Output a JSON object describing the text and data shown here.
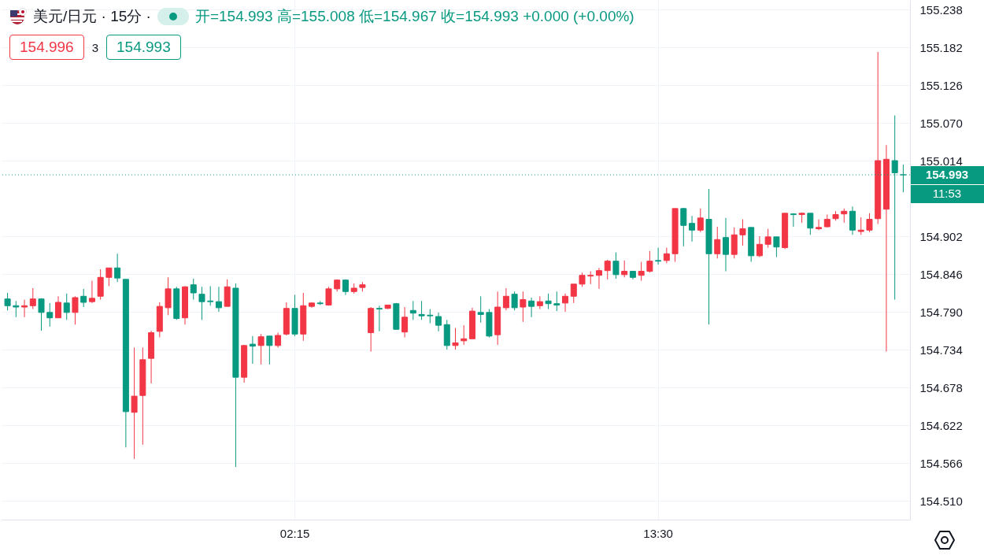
{
  "chart_data": {
    "type": "candlestick",
    "title": "美元/日元 · 15分 ·",
    "subtitle": "开=154.993  高=155.008  低=154.967  收=154.993  +0.000 (+0.00%)",
    "annotations": [
      "154.996",
      "3",
      "154.993",
      "11:53"
    ],
    "categories": [
      null,
      null,
      null,
      null,
      null,
      null,
      null,
      null,
      null,
      null,
      null,
      null,
      null,
      null,
      null,
      null,
      null,
      null,
      null,
      null,
      null,
      null,
      null,
      null,
      null,
      null,
      null,
      null,
      null,
      null,
      null,
      null,
      null,
      null,
      "02:15",
      null,
      null,
      null,
      null,
      null,
      null,
      null,
      null,
      null,
      null,
      null,
      null,
      null,
      null,
      null,
      null,
      null,
      null,
      null,
      null,
      null,
      null,
      null,
      null,
      null,
      null,
      null,
      null,
      null,
      null,
      null,
      null,
      null,
      null,
      null,
      null,
      null,
      null,
      null,
      null,
      null,
      null,
      "13:30",
      null,
      null,
      null,
      null,
      null,
      null,
      null,
      null,
      null,
      null,
      null,
      null,
      null,
      null,
      null,
      null,
      null,
      null,
      null,
      null,
      null,
      null,
      null,
      null,
      null,
      null,
      null,
      null,
      null
    ],
    "ohlc": [
      [
        154.809,
        154.818,
        154.792,
        154.799
      ],
      [
        154.799,
        154.806,
        154.782,
        154.797
      ],
      [
        154.797,
        154.808,
        154.782,
        154.799
      ],
      [
        154.799,
        154.825,
        154.794,
        154.809
      ],
      [
        154.809,
        154.81,
        154.762,
        154.789
      ],
      [
        154.789,
        154.803,
        154.768,
        154.781
      ],
      [
        154.781,
        154.813,
        154.781,
        154.804
      ],
      [
        154.803,
        154.817,
        154.778,
        154.789
      ],
      [
        154.789,
        154.813,
        154.771,
        154.811
      ],
      [
        154.813,
        154.824,
        154.797,
        154.804
      ],
      [
        154.805,
        154.836,
        154.803,
        154.81
      ],
      [
        154.813,
        154.853,
        154.808,
        154.841
      ],
      [
        154.841,
        154.855,
        154.828,
        154.855
      ],
      [
        154.855,
        154.876,
        154.834,
        154.84
      ],
      [
        154.838,
        154.838,
        154.589,
        154.642
      ],
      [
        154.641,
        154.737,
        154.572,
        154.665
      ],
      [
        154.666,
        154.737,
        154.593,
        154.719
      ],
      [
        154.721,
        154.762,
        154.684,
        154.759
      ],
      [
        154.761,
        154.804,
        154.752,
        154.798
      ],
      [
        154.796,
        154.841,
        154.785,
        154.824
      ],
      [
        154.824,
        154.827,
        154.778,
        154.78
      ],
      [
        154.781,
        154.828,
        154.771,
        154.827
      ],
      [
        154.83,
        154.839,
        154.808,
        154.818
      ],
      [
        154.816,
        154.827,
        154.778,
        154.805
      ],
      [
        154.806,
        154.828,
        154.799,
        154.805
      ],
      [
        154.805,
        154.827,
        154.79,
        154.796
      ],
      [
        154.798,
        154.838,
        154.798,
        154.827
      ],
      [
        154.825,
        154.832,
        154.56,
        154.693
      ],
      [
        154.693,
        154.741,
        154.685,
        154.74
      ],
      [
        154.742,
        154.754,
        154.713,
        154.739
      ],
      [
        154.74,
        154.757,
        154.712,
        154.753
      ],
      [
        154.754,
        154.754,
        154.712,
        154.74
      ],
      [
        154.74,
        154.759,
        154.737,
        154.755
      ],
      [
        154.757,
        154.804,
        154.755,
        154.795
      ],
      [
        154.795,
        154.815,
        154.754,
        154.757
      ],
      [
        154.757,
        154.818,
        154.747,
        154.799
      ],
      [
        154.798,
        154.804,
        154.796,
        154.803
      ],
      [
        154.803,
        154.806,
        154.8,
        154.802
      ],
      [
        154.8,
        154.827,
        154.799,
        154.824
      ],
      [
        154.824,
        154.838,
        154.82,
        154.837
      ],
      [
        154.837,
        154.838,
        154.815,
        154.82
      ],
      [
        154.82,
        154.832,
        154.817,
        154.825
      ],
      [
        154.826,
        154.834,
        154.82,
        154.83
      ],
      [
        154.759,
        154.797,
        154.731,
        154.795
      ],
      [
        154.795,
        154.799,
        154.761,
        154.794
      ],
      [
        154.795,
        154.8,
        154.794,
        154.8
      ],
      [
        154.802,
        154.803,
        154.764,
        154.764
      ],
      [
        154.76,
        154.797,
        154.752,
        154.782
      ],
      [
        154.792,
        154.806,
        154.778,
        154.788
      ],
      [
        154.786,
        154.806,
        154.778,
        154.784
      ],
      [
        154.785,
        154.794,
        154.773,
        154.784
      ],
      [
        154.783,
        154.789,
        154.761,
        154.77
      ],
      [
        154.771,
        154.778,
        154.734,
        154.74
      ],
      [
        154.74,
        154.766,
        154.734,
        154.744
      ],
      [
        154.747,
        154.77,
        154.741,
        154.75
      ],
      [
        154.75,
        154.796,
        154.75,
        154.791
      ],
      [
        154.789,
        154.813,
        154.774,
        154.786
      ],
      [
        154.789,
        154.794,
        154.752,
        154.754
      ],
      [
        154.756,
        154.82,
        154.741,
        154.797
      ],
      [
        154.796,
        154.825,
        154.792,
        154.813
      ],
      [
        154.816,
        154.82,
        154.792,
        154.796
      ],
      [
        154.797,
        154.82,
        154.775,
        154.808
      ],
      [
        154.806,
        154.811,
        154.782,
        154.798
      ],
      [
        154.799,
        154.813,
        154.794,
        154.805
      ],
      [
        154.806,
        154.817,
        154.794,
        154.802
      ],
      [
        154.802,
        154.82,
        154.791,
        154.8
      ],
      [
        154.803,
        154.817,
        154.79,
        154.813
      ],
      [
        154.813,
        154.831,
        154.803,
        154.831
      ],
      [
        154.831,
        154.848,
        154.827,
        154.844
      ],
      [
        154.843,
        154.85,
        154.831,
        154.844
      ],
      [
        154.844,
        154.855,
        154.824,
        154.851
      ],
      [
        154.851,
        154.867,
        154.838,
        154.865
      ],
      [
        154.865,
        154.878,
        154.839,
        154.845
      ],
      [
        154.845,
        154.866,
        154.841,
        154.85
      ],
      [
        154.85,
        154.85,
        154.838,
        154.841
      ],
      [
        154.844,
        154.864,
        154.836,
        154.85
      ],
      [
        154.85,
        154.88,
        154.848,
        154.865
      ],
      [
        154.866,
        154.885,
        154.86,
        154.865
      ],
      [
        154.866,
        154.885,
        154.862,
        154.876
      ],
      [
        154.876,
        154.943,
        154.864,
        154.943
      ],
      [
        154.943,
        154.944,
        154.887,
        154.918
      ],
      [
        154.921,
        154.932,
        154.894,
        154.911
      ],
      [
        154.911,
        154.943,
        154.908,
        154.929
      ],
      [
        154.927,
        154.972,
        154.771,
        154.876
      ],
      [
        154.876,
        154.916,
        154.869,
        154.897
      ],
      [
        154.9,
        154.929,
        154.85,
        154.875
      ],
      [
        154.875,
        154.915,
        154.869,
        154.904
      ],
      [
        154.904,
        154.927,
        154.888,
        154.913
      ],
      [
        154.915,
        154.915,
        154.864,
        154.873
      ],
      [
        154.873,
        154.902,
        154.871,
        154.89
      ],
      [
        154.89,
        154.913,
        154.885,
        154.901
      ],
      [
        154.901,
        154.901,
        154.871,
        154.886
      ],
      [
        154.885,
        154.936,
        154.883,
        154.936
      ],
      [
        154.935,
        154.936,
        154.916,
        154.934
      ],
      [
        154.934,
        154.937,
        154.922,
        154.936
      ],
      [
        154.936,
        154.936,
        154.904,
        154.914
      ],
      [
        154.913,
        154.927,
        154.911,
        154.915
      ],
      [
        154.916,
        154.934,
        154.915,
        154.927
      ],
      [
        154.928,
        154.939,
        154.925,
        154.934
      ],
      [
        154.935,
        154.943,
        154.922,
        154.939
      ],
      [
        154.939,
        154.946,
        154.904,
        154.911
      ],
      [
        154.909,
        154.93,
        154.904,
        154.911
      ],
      [
        154.911,
        154.936,
        154.908,
        154.927
      ],
      [
        154.928,
        155.175,
        154.92,
        155.014
      ],
      [
        154.942,
        155.037,
        154.731,
        155.016
      ],
      [
        155.014,
        155.081,
        154.808,
        154.996
      ],
      [
        154.993,
        155.008,
        154.967,
        154.993
      ]
    ],
    "colors": [
      "#089981",
      "#089981",
      "#f23645",
      "#f23645",
      "#089981",
      "#089981",
      "#f23645",
      "#089981",
      "#f23645",
      "#089981",
      "#f23645",
      "#f23645",
      "#f23645",
      "#089981",
      "#089981",
      "#f23645",
      "#f23645",
      "#f23645",
      "#f23645",
      "#f23645",
      "#089981",
      "#f23645",
      "#089981",
      "#089981",
      "#089981",
      "#089981",
      "#f23645",
      "#089981",
      "#f23645",
      "#089981",
      "#f23645",
      "#089981",
      "#f23645",
      "#f23645",
      "#089981",
      "#f23645",
      "#f23645",
      "#089981",
      "#f23645",
      "#f23645",
      "#089981",
      "#f23645",
      "#f23645",
      "#f23645",
      "#089981",
      "#f23645",
      "#089981",
      "#f23645",
      "#089981",
      "#089981",
      "#089981",
      "#089981",
      "#089981",
      "#f23645",
      "#f23645",
      "#f23645",
      "#089981",
      "#089981",
      "#f23645",
      "#f23645",
      "#089981",
      "#f23645",
      "#089981",
      "#f23645",
      "#089981",
      "#089981",
      "#f23645",
      "#f23645",
      "#f23645",
      "#f23645",
      "#f23645",
      "#f23645",
      "#089981",
      "#f23645",
      "#089981",
      "#f23645",
      "#f23645",
      "#089981",
      "#f23645",
      "#f23645",
      "#089981",
      "#089981",
      "#f23645",
      "#089981",
      "#f23645",
      "#089981",
      "#f23645",
      "#f23645",
      "#089981",
      "#f23645",
      "#f23645",
      "#089981",
      "#f23645",
      "#089981",
      "#f23645",
      "#089981",
      "#f23645",
      "#f23645",
      "#f23645",
      "#f23645",
      "#089981",
      "#f23645",
      "#f23645",
      "#f23645",
      "#f23645",
      "#089981",
      "#089981"
    ],
    "ylim": [
      154.482,
      155.252
    ],
    "yticks": [
      {
        "value": 154.51,
        "label": "154.510"
      },
      154.566,
      154.622,
      154.678,
      154.734,
      {
        "value": 154.79,
        "label": "154.790"
      },
      154.846,
      154.902,
      155.014,
      {
        "value": 155.07,
        "label": "155.070"
      },
      155.126,
      155.182,
      155.238
    ],
    "grid": true,
    "ref_lines": [
      {
        "axis": "y",
        "value": 154.993,
        "label": "154.993",
        "color": "#089981",
        "line_style": "dotted"
      }
    ]
  }
}
